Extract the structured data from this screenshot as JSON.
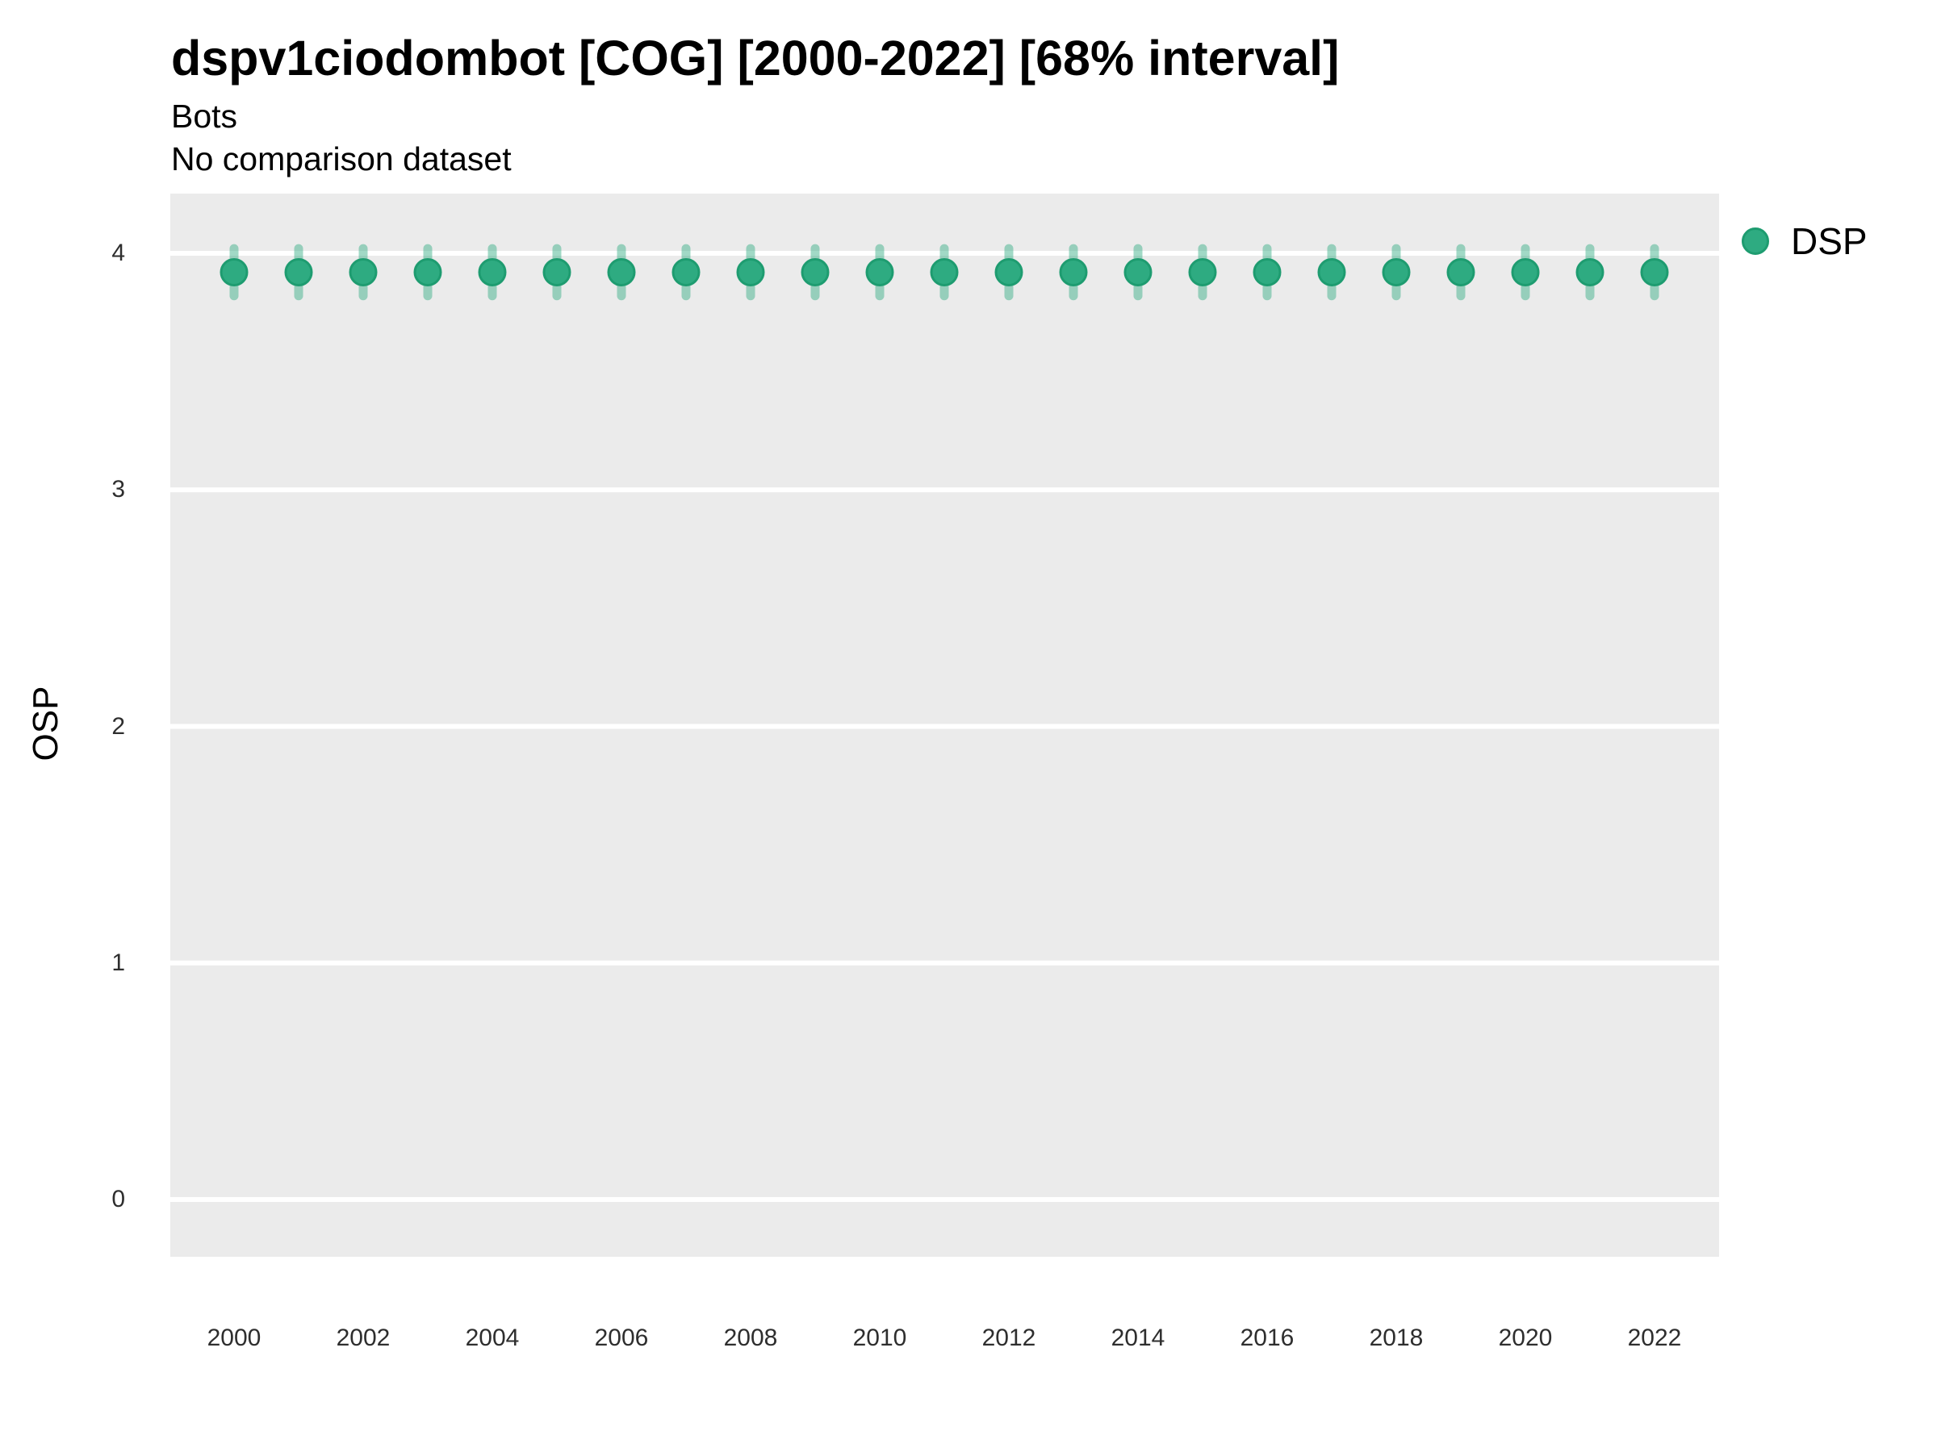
{
  "header": {
    "title": "dspv1ciodombot [COG] [2000-2022] [68% interval]",
    "subtitle": "Bots",
    "note": "No comparison dataset"
  },
  "legend": {
    "position": "right-top",
    "items": [
      {
        "label": "DSP",
        "color": "#2EAB81"
      }
    ]
  },
  "chart_data": {
    "type": "scatter",
    "title": "dspv1ciodombot [COG] [2000-2022] [68% interval]",
    "subtitle": "Bots",
    "note": "No comparison dataset",
    "xlabel": "",
    "ylabel": "OSP",
    "interval_label": "68% interval",
    "grid": "horizontal-major-only",
    "legend_position": "right-top",
    "x": [
      2000,
      2001,
      2002,
      2003,
      2004,
      2005,
      2006,
      2007,
      2008,
      2009,
      2010,
      2011,
      2012,
      2013,
      2014,
      2015,
      2016,
      2017,
      2018,
      2019,
      2020,
      2021,
      2022
    ],
    "series": [
      {
        "name": "DSP",
        "values": [
          3.92,
          3.92,
          3.92,
          3.92,
          3.92,
          3.92,
          3.92,
          3.92,
          3.92,
          3.92,
          3.92,
          3.92,
          3.92,
          3.92,
          3.92,
          3.92,
          3.92,
          3.92,
          3.92,
          3.92,
          3.92,
          3.92,
          3.92
        ],
        "interval_low": [
          3.82,
          3.82,
          3.82,
          3.82,
          3.82,
          3.82,
          3.82,
          3.82,
          3.82,
          3.82,
          3.82,
          3.82,
          3.82,
          3.82,
          3.82,
          3.82,
          3.82,
          3.82,
          3.82,
          3.82,
          3.82,
          3.82,
          3.82
        ],
        "interval_high": [
          4.02,
          4.02,
          4.02,
          4.02,
          4.02,
          4.02,
          4.02,
          4.02,
          4.02,
          4.02,
          4.02,
          4.02,
          4.02,
          4.02,
          4.02,
          4.02,
          4.02,
          4.02,
          4.02,
          4.02,
          4.02,
          4.02,
          4.02
        ]
      }
    ],
    "yticks": [
      0,
      1,
      2,
      3,
      4
    ],
    "xticks": [
      2000,
      2002,
      2004,
      2006,
      2008,
      2010,
      2012,
      2014,
      2016,
      2018,
      2020,
      2022
    ],
    "ylim": [
      -0.25,
      4.25
    ],
    "xlim": [
      1999,
      2023
    ],
    "colors": {
      "point_fill": "#2EAB81",
      "point_stroke": "#1E9C70",
      "error_bar": "#2EAB81",
      "error_bar_opacity": 0.45,
      "panel_bg": "#EBEBEB",
      "gridline": "#FFFFFF"
    }
  }
}
